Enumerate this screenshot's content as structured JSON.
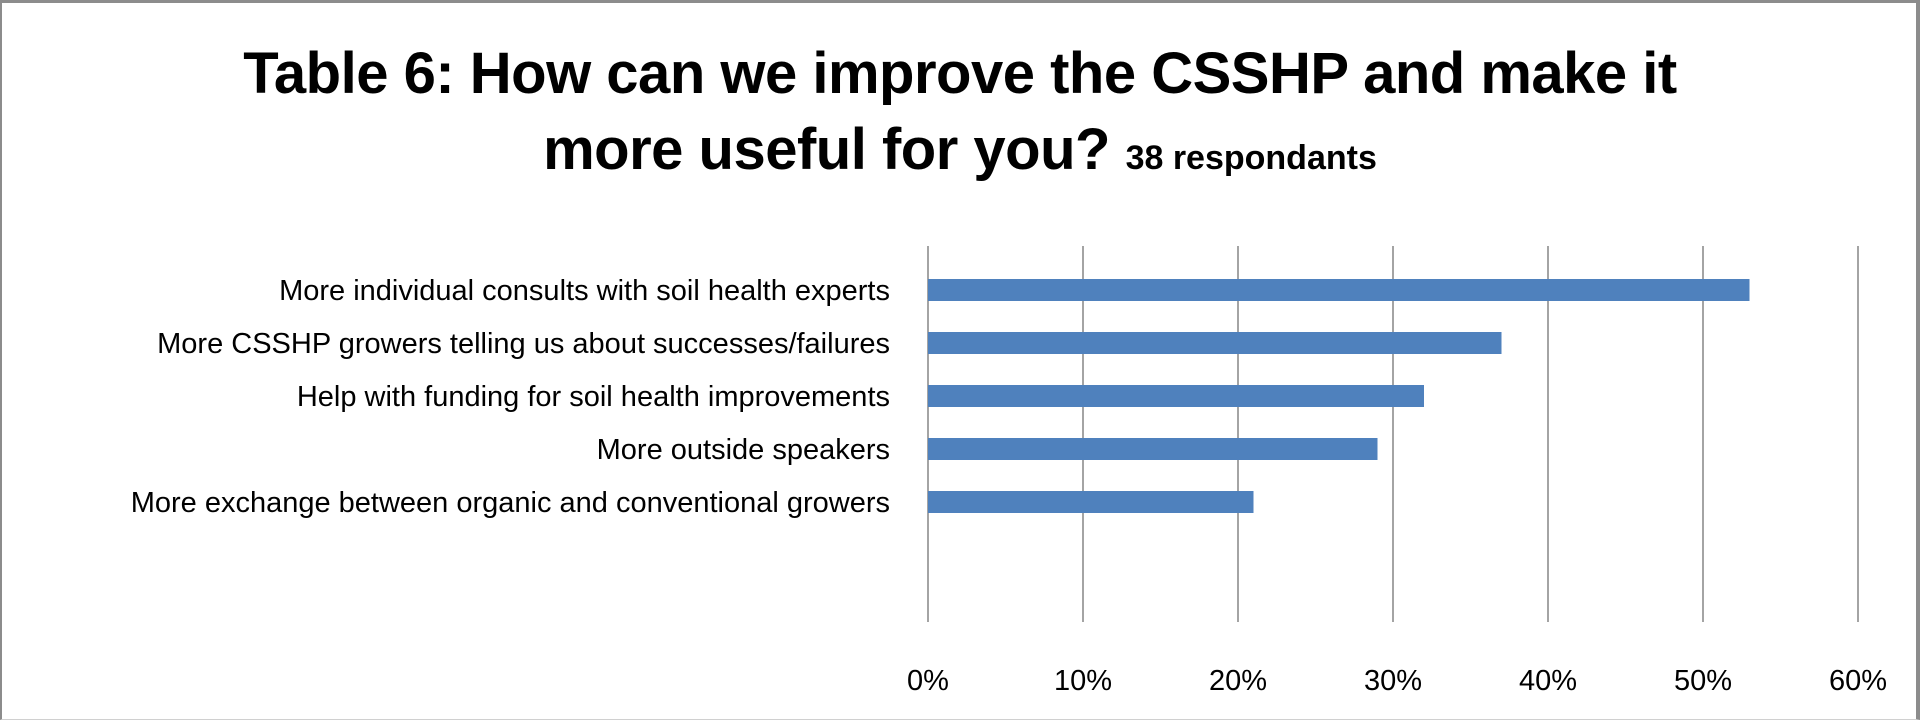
{
  "chart_data": {
    "type": "bar",
    "orientation": "horizontal",
    "title": "Table 6: How can we improve the CSSHP and make it",
    "title_line2": "more useful for you?",
    "subtitle": "38 respondants",
    "categories": [
      "More individual consults with soil health experts",
      "More CSSHP growers telling us about successes/failures",
      "Help with funding for soil health improvements",
      "More outside speakers",
      "More exchange between organic and conventional growers"
    ],
    "values": [
      0.53,
      0.37,
      0.32,
      0.29,
      0.21
    ],
    "xlim": [
      0,
      0.6
    ],
    "xticks": [
      0,
      0.1,
      0.2,
      0.3,
      0.4,
      0.5,
      0.6
    ],
    "xtick_labels": [
      "0%",
      "10%",
      "20%",
      "30%",
      "40%",
      "50%",
      "60%"
    ],
    "xlabel": "",
    "ylabel": "",
    "grid": true,
    "legend": "none",
    "bar_color": "#4f81bd",
    "gridline_color": "#868686"
  }
}
